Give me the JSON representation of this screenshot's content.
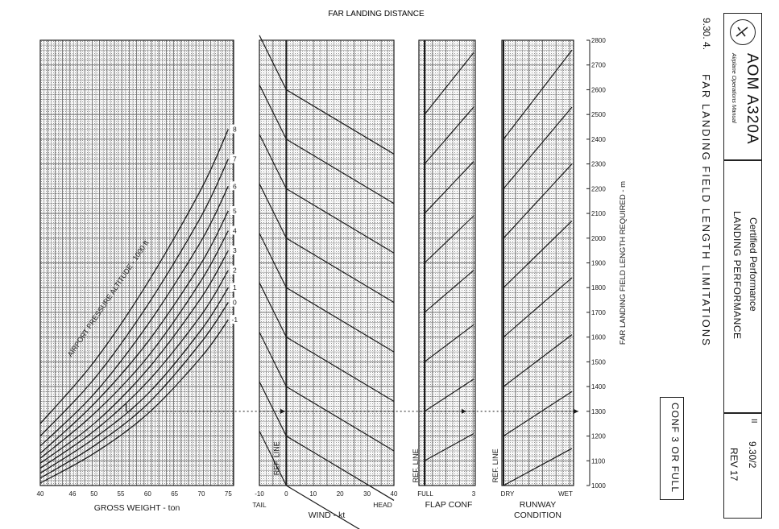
{
  "header": {
    "figure_title": "FAR LANDING DISTANCE"
  },
  "side_panel": {
    "logo_icon": "aircraft-emblem-icon",
    "manual_title": "AOM A320A",
    "manual_subtitle": "Airplane Operations Manual",
    "section_title": "Certified Performance",
    "section_subtitle": "LANDING PERFORMANCE",
    "page_ref": "9.30/2",
    "revision": "REV 17",
    "separator_mark": "II",
    "chapter_ref": "9.30. 4.",
    "chapter_title": "FAR LANDING FIELD LENGTH LIMITATIONS",
    "configuration": "CONF 3 OR FULL"
  },
  "chart_data": {
    "type": "line",
    "title": "FAR LANDING DISTANCE",
    "ylabel": "FAR LANDING FIELD LENGTH REQUIRED - m",
    "ylim": [
      1000,
      2800
    ],
    "yticks": [
      1000,
      1100,
      1200,
      1300,
      1400,
      1500,
      1600,
      1700,
      1800,
      1900,
      2000,
      2100,
      2200,
      2300,
      2400,
      2500,
      2600,
      2700,
      2800
    ],
    "ytick_labels": [
      "1000",
      "1100",
      "1200",
      "1300",
      "1400",
      "1500",
      "1600",
      "1700",
      "1800",
      "1900",
      "2000",
      "2100",
      "2200",
      "2300",
      "2400",
      "2500",
      "2600",
      "2700",
      "2800"
    ],
    "grid": true,
    "panels": [
      {
        "name": "gross-weight",
        "xlabel": "GROSS WEIGHT - ton",
        "xlim": [
          40,
          76
        ],
        "xticks": [
          40,
          46,
          50,
          55,
          60,
          65,
          70,
          75
        ],
        "xtick_labels": [
          "40",
          "46",
          "50",
          "55",
          "60",
          "65",
          "70",
          "75"
        ],
        "curve_family_label": "AIRPORT PRESSURE ALTITUDE - 1000 ft",
        "series": [
          {
            "name": "-1",
            "x": [
              40,
              50,
              60,
              70,
              75
            ],
            "y": [
              1010,
              1130,
              1290,
              1520,
              1670
            ]
          },
          {
            "name": "0",
            "x": [
              40,
              50,
              60,
              70,
              75
            ],
            "y": [
              1030,
              1160,
              1330,
              1580,
              1740
            ]
          },
          {
            "name": "1",
            "x": [
              40,
              50,
              60,
              70,
              75
            ],
            "y": [
              1050,
              1190,
              1370,
              1630,
              1800
            ]
          },
          {
            "name": "2",
            "x": [
              40,
              50,
              60,
              70,
              75
            ],
            "y": [
              1070,
              1220,
              1420,
              1690,
              1870
            ]
          },
          {
            "name": "3",
            "x": [
              40,
              50,
              60,
              70,
              75
            ],
            "y": [
              1090,
              1250,
              1470,
              1760,
              1950
            ]
          },
          {
            "name": "4",
            "x": [
              40,
              50,
              60,
              70,
              75
            ],
            "y": [
              1110,
              1290,
              1520,
              1830,
              2030
            ]
          },
          {
            "name": "5",
            "x": [
              40,
              50,
              60,
              70,
              75
            ],
            "y": [
              1130,
              1330,
              1580,
              1900,
              2110
            ]
          },
          {
            "name": "6",
            "x": [
              40,
              50,
              60,
              70,
              75
            ],
            "y": [
              1160,
              1370,
              1650,
              1990,
              2210
            ]
          },
          {
            "name": "7",
            "x": [
              40,
              50,
              60,
              70,
              75
            ],
            "y": [
              1200,
              1430,
              1730,
              2090,
              2320
            ]
          },
          {
            "name": "8",
            "x": [
              40,
              50,
              60,
              70,
              75
            ],
            "y": [
              1250,
              1500,
              1820,
              2200,
              2440
            ]
          }
        ],
        "example_line": {
          "weight": 56,
          "distance": 1300
        }
      },
      {
        "name": "wind",
        "xlabel": "WIND - kt",
        "xlim": [
          -10,
          40
        ],
        "xticks": [
          -10,
          0,
          10,
          20,
          30,
          40
        ],
        "xtick_labels": [
          "-10",
          "0",
          "10",
          "20",
          "30",
          "40"
        ],
        "end_labels": [
          "TAIL",
          "HEAD"
        ],
        "reference_label": "REF. LINE",
        "guide_lines": {
          "reference_values_at_zero": [
            1000,
            1200,
            1400,
            1600,
            1800,
            2000,
            2200,
            2400,
            2600
          ],
          "headwind_slope_m_per_kt": -6.5,
          "tailwind_slope_m_per_kt": -22
        }
      },
      {
        "name": "flap-conf",
        "xlabel": "FLAP CONF",
        "categories": [
          "FULL",
          "3"
        ],
        "reference_label": "REF. LINE",
        "guide_lines": {
          "reference_values_at_full": [
            1100,
            1300,
            1500,
            1700,
            1900,
            2100,
            2300,
            2500
          ],
          "conf3_increase_ratio": 1.1
        }
      },
      {
        "name": "runway-condition",
        "xlabel": "RUNWAY CONDITION",
        "categories": [
          "DRY",
          "WET"
        ],
        "reference_label": "REF. LINE",
        "guide_lines": {
          "reference_values_at_dry": [
            1000,
            1200,
            1400,
            1600,
            1800,
            2000,
            2200,
            2400
          ],
          "wet_increase_ratio": 1.15
        }
      }
    ]
  },
  "colors": {
    "ink": "#1a1a1a",
    "grid": "#6b6b6b",
    "stipple": "#9a9a9a",
    "paper": "#ffffff"
  }
}
